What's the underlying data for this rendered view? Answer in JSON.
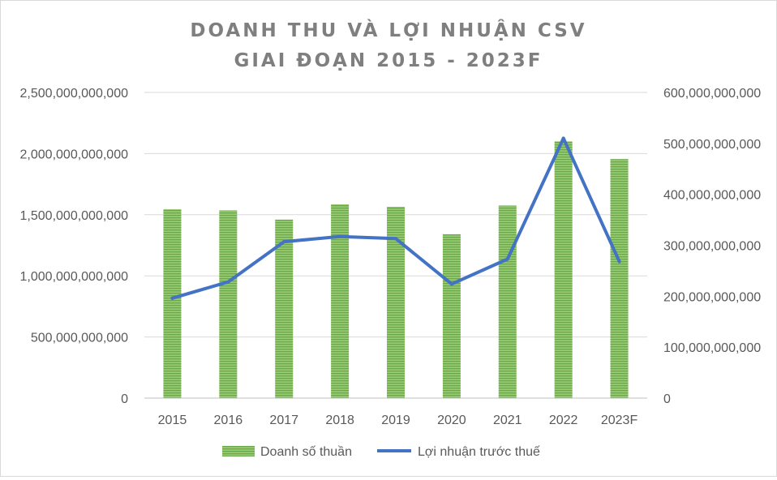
{
  "chart_data": {
    "type": "bar",
    "title": "DOANH THU VÀ LỢI NHUẬN CSV",
    "subtitle": "GIAI ĐOẠN 2015 - 2023F",
    "categories": [
      "2015",
      "2016",
      "2017",
      "2018",
      "2019",
      "2020",
      "2021",
      "2022",
      "2023F"
    ],
    "y_left": {
      "ylim": [
        0,
        2500000000000
      ],
      "ticks": [
        0,
        500000000000,
        1000000000000,
        1500000000000,
        2000000000000,
        2500000000000
      ],
      "tick_labels": [
        "0",
        "500,000,000,000",
        "1,000,000,000,000",
        "1,500,000,000,000",
        "2,000,000,000,000",
        "2,500,000,000,000"
      ]
    },
    "y_right": {
      "ylim": [
        0,
        600000000000
      ],
      "ticks": [
        0,
        100000000000,
        200000000000,
        300000000000,
        400000000000,
        500000000000,
        600000000000
      ],
      "tick_labels": [
        "0",
        "100,000,000,000",
        "200,000,000,000",
        "300,000,000,000",
        "400,000,000,000",
        "500,000,000,000",
        "600,000,000,000"
      ]
    },
    "series": [
      {
        "name": "Doanh số thuần",
        "type": "bar",
        "axis": "left",
        "color": "#70ad47",
        "values": [
          1545000000000,
          1535000000000,
          1460000000000,
          1585000000000,
          1565000000000,
          1340000000000,
          1575000000000,
          2100000000000,
          1955000000000
        ]
      },
      {
        "name": "Lợi nhuận trước thuế",
        "type": "line",
        "axis": "right",
        "color": "#4472c4",
        "values": [
          196000000000,
          228000000000,
          307000000000,
          317000000000,
          313000000000,
          224000000000,
          273000000000,
          510000000000,
          268000000000
        ]
      }
    ],
    "grid": true,
    "legend_position": "bottom"
  }
}
